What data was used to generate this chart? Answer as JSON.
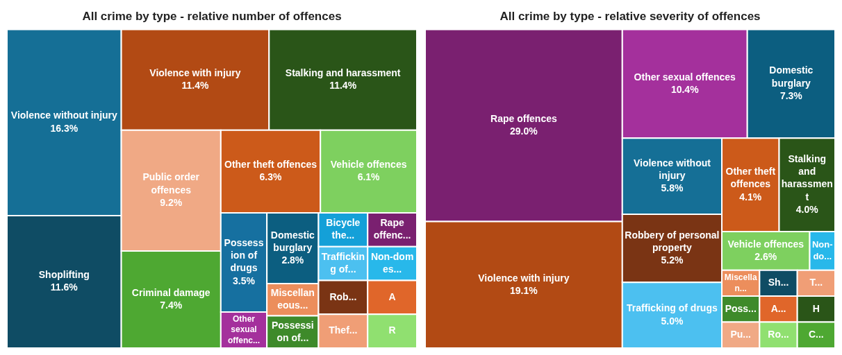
{
  "chart_data": [
    {
      "type": "other",
      "title": "All crime by type - relative number of offences",
      "categories": [
        "Violence without injury",
        "Shoplifting",
        "Violence with injury",
        "Stalking and harassment",
        "Public order offences",
        "Criminal damage",
        "Other theft offences",
        "Vehicle offences",
        "Possession of drugs",
        "Other sexual offenc...",
        "Domestic burglary",
        "Miscellaneous...",
        "Possession of...",
        "Bicycle the...",
        "Rape offenc...",
        "Trafficking of...",
        "Non-domes...",
        "Rob...",
        "Thef...",
        "A",
        "R"
      ],
      "values": [
        16.3,
        11.6,
        11.4,
        11.4,
        9.2,
        7.4,
        6.3,
        6.1,
        3.5,
        null,
        2.8,
        null,
        null,
        null,
        null,
        null,
        null,
        null,
        null,
        null,
        null
      ],
      "value_labels": [
        "16.3%",
        "11.6%",
        "11.4%",
        "11.4%",
        "9.2%",
        "7.4%",
        "6.3%",
        "6.1%",
        "3.5%",
        null,
        "2.8%",
        null,
        null,
        null,
        null,
        null,
        null,
        null,
        null,
        null,
        null
      ],
      "colors": [
        "#156f96",
        "#0f4c64",
        "#b24a14",
        "#2a5518",
        "#f0a985",
        "#4ea832",
        "#cc5a1a",
        "#7ed05f",
        "#1670a0",
        "#a4309c",
        "#0c5e80",
        "#ec8e5c",
        "#3e8a2a",
        "#14a0d8",
        "#7a2070",
        "#4cc0f0",
        "#28b8ea",
        "#7a3414",
        "#f09e76",
        "#e0662a",
        "#90e070"
      ]
    },
    {
      "type": "other",
      "title": "All crime by type - relative severity of offences",
      "categories": [
        "Rape offences",
        "Violence with injury",
        "Other sexual offences",
        "Domestic burglary",
        "Violence without injury",
        "Robbery of personal property",
        "Trafficking of drugs",
        "Other theft offences",
        "Stalking and harassment",
        "Vehicle offences",
        "Non-do...",
        "Miscellan...",
        "Poss...",
        "Pu...",
        "Sh...",
        "T...",
        "A...",
        "Ro...",
        "H",
        "C..."
      ],
      "values": [
        29.0,
        19.1,
        10.4,
        7.3,
        5.8,
        5.2,
        5.0,
        4.1,
        4.0,
        2.6,
        null,
        null,
        null,
        null,
        null,
        null,
        null,
        null,
        null,
        null
      ],
      "value_labels": [
        "29.0%",
        "19.1%",
        "10.4%",
        "7.3%",
        "5.8%",
        "5.2%",
        "5.0%",
        "4.1%",
        "4.0%",
        "2.6%",
        null,
        null,
        null,
        null,
        null,
        null,
        null,
        null,
        null,
        null
      ],
      "colors": [
        "#7a2070",
        "#b24a14",
        "#a4309c",
        "#0c5e80",
        "#156f96",
        "#7a3414",
        "#4cc0f0",
        "#cc5a1a",
        "#2a5518",
        "#7ed05f",
        "#28b8ea",
        "#ec8e5c",
        "#3e8a2a",
        "#f0a985",
        "#0f4c64",
        "#f09e76",
        "#e0662a",
        "#90e070",
        "#2a5518",
        "#4ea832"
      ]
    }
  ]
}
